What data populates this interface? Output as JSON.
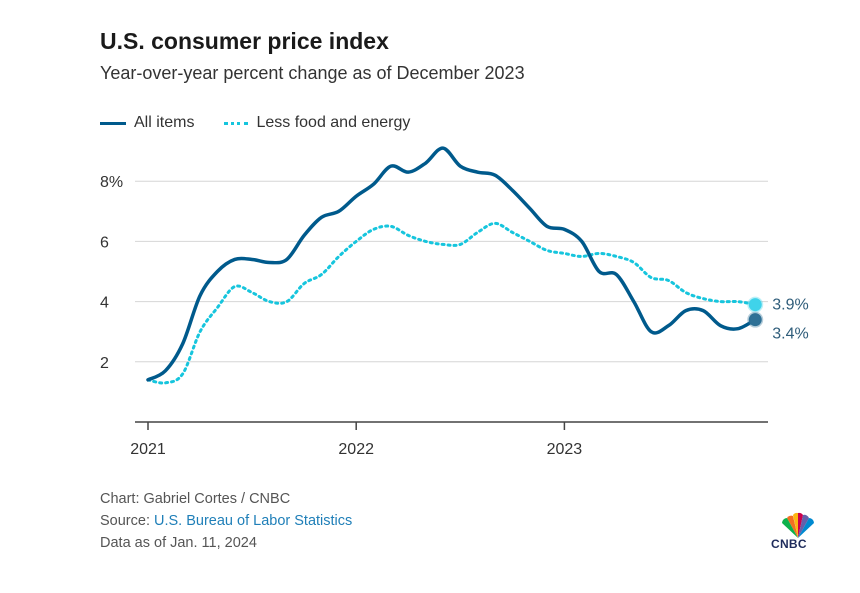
{
  "title": "U.S. consumer price index",
  "subtitle": "Year-over-year percent change as of December 2023",
  "legend": {
    "series1": "All items",
    "series2": "Less food and energy"
  },
  "colors": {
    "all_items": "#005a8c",
    "core": "#16c5dd",
    "grid": "#d6d6d6",
    "axis": "#444444"
  },
  "chart_data": {
    "type": "line",
    "title": "U.S. consumer price index",
    "subtitle": "Year-over-year percent change as of December 2023",
    "xlabel": "",
    "ylabel": "",
    "x_tick_labels": [
      "2021",
      "2022",
      "2023"
    ],
    "y_tick_labels": [
      "8%",
      "6",
      "4",
      "2"
    ],
    "y_ticks": [
      8,
      6,
      4,
      2
    ],
    "ylim": [
      0,
      9.3
    ],
    "grid": true,
    "legend_position": "top-left",
    "x_dates": [
      "2021-01",
      "2021-02",
      "2021-03",
      "2021-04",
      "2021-05",
      "2021-06",
      "2021-07",
      "2021-08",
      "2021-09",
      "2021-10",
      "2021-11",
      "2021-12",
      "2022-01",
      "2022-02",
      "2022-03",
      "2022-04",
      "2022-05",
      "2022-06",
      "2022-07",
      "2022-08",
      "2022-09",
      "2022-10",
      "2022-11",
      "2022-12",
      "2023-01",
      "2023-02",
      "2023-03",
      "2023-04",
      "2023-05",
      "2023-06",
      "2023-07",
      "2023-08",
      "2023-09",
      "2023-10",
      "2023-11",
      "2023-12"
    ],
    "series": [
      {
        "name": "All items",
        "style": "solid",
        "values": [
          1.4,
          1.7,
          2.6,
          4.2,
          5.0,
          5.4,
          5.4,
          5.3,
          5.4,
          6.2,
          6.8,
          7.0,
          7.5,
          7.9,
          8.5,
          8.3,
          8.6,
          9.1,
          8.5,
          8.3,
          8.2,
          7.7,
          7.1,
          6.5,
          6.4,
          6.0,
          5.0,
          4.9,
          4.0,
          3.0,
          3.2,
          3.7,
          3.7,
          3.2,
          3.1,
          3.4
        ]
      },
      {
        "name": "Less food and energy",
        "style": "dotted",
        "values": [
          1.4,
          1.3,
          1.6,
          3.0,
          3.8,
          4.5,
          4.3,
          4.0,
          4.0,
          4.6,
          4.9,
          5.5,
          6.0,
          6.4,
          6.5,
          6.2,
          6.0,
          5.9,
          5.9,
          6.3,
          6.6,
          6.3,
          6.0,
          5.7,
          5.6,
          5.5,
          5.6,
          5.5,
          5.3,
          4.8,
          4.7,
          4.3,
          4.1,
          4.0,
          4.0,
          3.9
        ]
      }
    ],
    "end_labels": [
      "3.9%",
      "3.4%"
    ]
  },
  "footer": {
    "credit": "Chart: Gabriel Cortes / CNBC",
    "source_prefix": "Source: ",
    "source_link": "U.S. Bureau of Labor Statistics",
    "data_as_of": "Data as of Jan. 11, 2024"
  },
  "logo": {
    "text": "CNBC",
    "icon": "nbc-peacock-icon"
  }
}
